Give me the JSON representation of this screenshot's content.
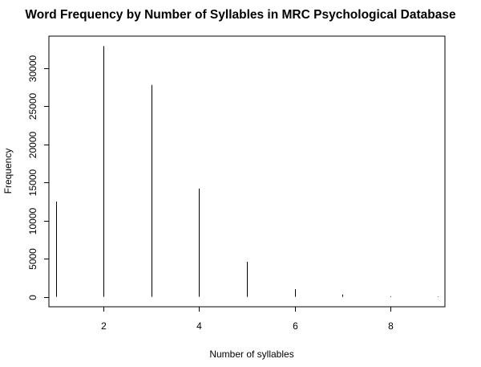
{
  "chart_data": {
    "type": "bar",
    "title": "Word Frequency by Number of Syllables in MRC Psychological Database",
    "xlabel": "Number of syllables",
    "ylabel": "Frequency",
    "x": [
      1,
      2,
      3,
      4,
      5,
      6,
      7,
      8,
      9
    ],
    "values": [
      12500,
      32900,
      27800,
      14200,
      4600,
      1000,
      300,
      80,
      50
    ],
    "xlim": [
      0.85,
      9.15
    ],
    "ylim": [
      -1300,
      34200
    ],
    "xticks": [
      2,
      4,
      6,
      8
    ],
    "xtick_labels": [
      "2",
      "4",
      "6",
      "8"
    ],
    "yticks": [
      0,
      5000,
      10000,
      15000,
      20000,
      25000,
      30000
    ],
    "ytick_labels": [
      "0",
      "5000",
      "10000",
      "15000",
      "20000",
      "25000",
      "30000"
    ],
    "grid": false,
    "box": true,
    "bar_color": "#000000"
  }
}
